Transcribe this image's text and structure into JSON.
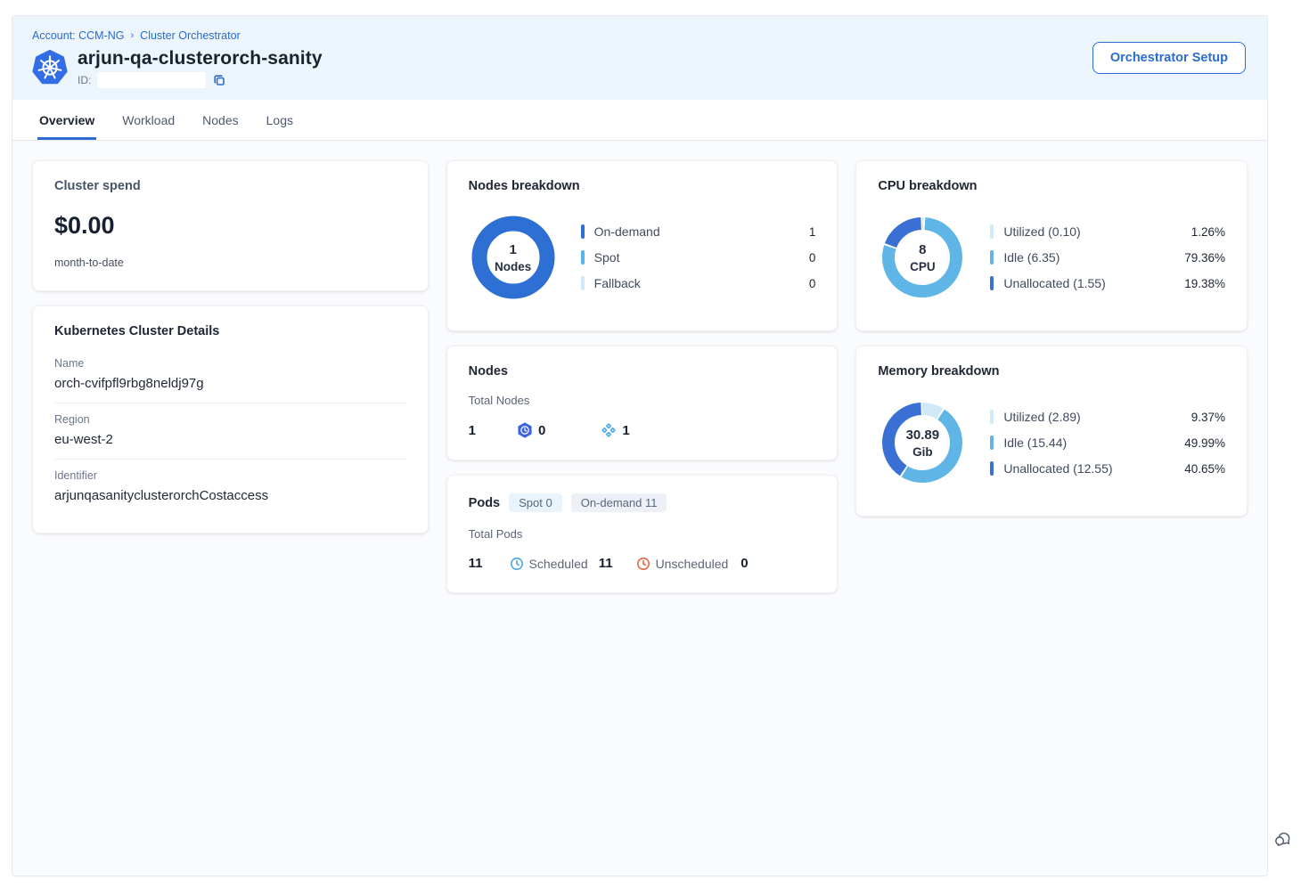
{
  "header": {
    "breadcrumb": {
      "account": "Account: CCM-NG",
      "separator": "›",
      "section": "Cluster Orchestrator"
    },
    "title": "arjun-qa-clusterorch-sanity",
    "id_label": "ID:",
    "id_value": "",
    "setup_button_label": "Orchestrator Setup"
  },
  "tabs": [
    {
      "label": "Overview"
    },
    {
      "label": "Workload"
    },
    {
      "label": "Nodes"
    },
    {
      "label": "Logs"
    }
  ],
  "cluster_spend": {
    "title": "Cluster spend",
    "amount": "$0.00",
    "period": "month-to-date"
  },
  "cluster_details": {
    "title": "Kubernetes Cluster Details",
    "fields": [
      {
        "label": "Name",
        "value": "orch-cvifpfl9rbg8neldj97g"
      },
      {
        "label": "Region",
        "value": "eu-west-2"
      },
      {
        "label": "Identifier",
        "value": "arjunqasanityclusterorchCostaccess"
      }
    ]
  },
  "nodes_card": {
    "title": "Nodes",
    "total_label": "Total Nodes",
    "total": "1",
    "spot_count": "0",
    "on_demand_count": "1"
  },
  "pods_card": {
    "title": "Pods",
    "spot_chip": "Spot 0",
    "on_demand_chip": "On-demand 11",
    "total_label": "Total Pods",
    "total": "11",
    "scheduled_label": "Scheduled",
    "scheduled_count": "11",
    "unscheduled_label": "Unscheduled",
    "unscheduled_count": "0"
  },
  "chart_data": [
    {
      "type": "donut",
      "title": "Nodes breakdown",
      "center_value": "1",
      "center_label": "Nodes",
      "segments": [
        {
          "label": "On-demand",
          "value": 1,
          "display": "1",
          "color": "#2e6fd4"
        },
        {
          "label": "Spot",
          "value": 0,
          "display": "0",
          "color": "#57b3e8"
        },
        {
          "label": "Fallback",
          "value": 0,
          "display": "0",
          "color": "#cfe9f8"
        }
      ]
    },
    {
      "type": "donut",
      "title": "CPU breakdown",
      "center_value": "8",
      "center_label": "CPU",
      "segments": [
        {
          "label": "Utilized (0.10)",
          "value": 1.26,
          "display": "1.26%",
          "color": "#cfe9f8"
        },
        {
          "label": "Idle (6.35)",
          "value": 79.36,
          "display": "79.36%",
          "color": "#60b5e7"
        },
        {
          "label": "Unallocated (1.55)",
          "value": 19.38,
          "display": "19.38%",
          "color": "#3a70d4"
        }
      ]
    },
    {
      "type": "donut",
      "title": "Memory breakdown",
      "center_value": "30.89",
      "center_label": "Gib",
      "segments": [
        {
          "label": "Utilized (2.89)",
          "value": 9.37,
          "display": "9.37%",
          "color": "#cfe9f8"
        },
        {
          "label": "Idle (15.44)",
          "value": 49.99,
          "display": "49.99%",
          "color": "#60b5e7"
        },
        {
          "label": "Unallocated (12.55)",
          "value": 40.65,
          "display": "40.65%",
          "color": "#3a70d4"
        }
      ]
    }
  ],
  "colors": {
    "accent": "#2b6cd0",
    "scheduled_clock": "#45a7e8",
    "unscheduled_clock": "#e8633c"
  }
}
